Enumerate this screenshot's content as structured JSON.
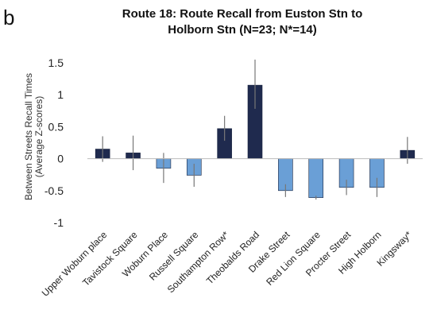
{
  "chart_data": {
    "type": "bar",
    "panel_label": "b",
    "title_lines": [
      "Route 18: Route Recall from Euston Stn to",
      "Holborn Stn (N=23; N*=14)"
    ],
    "ylabel_lines": [
      "Between Streets Recall Times",
      "(Average Z-scores)"
    ],
    "ylim": [
      -1,
      1.5
    ],
    "yticks": [
      -1,
      -0.5,
      0,
      0.5,
      1,
      1.5
    ],
    "ytick_labels": [
      "-1",
      "-0.5",
      "0",
      "0.5",
      "1",
      "1.5"
    ],
    "categories": [
      "Upper Woburn place",
      "Tavistock Square",
      "Woburn Place",
      "Russell Square",
      "Southampton Row*",
      "Theobalds Road",
      "Drake Street",
      "Red Lion Square",
      "Procter Street",
      "High Holborn",
      "Kingsway*"
    ],
    "values": [
      0.15,
      0.09,
      -0.15,
      -0.26,
      0.47,
      1.15,
      -0.5,
      -0.61,
      -0.45,
      -0.45,
      0.13
    ],
    "error_low": [
      -0.05,
      -0.18,
      -0.38,
      -0.44,
      0.28,
      0.78,
      -0.6,
      -0.64,
      -0.57,
      -0.6,
      -0.08
    ],
    "error_high": [
      0.35,
      0.36,
      0.09,
      -0.08,
      0.67,
      1.55,
      -0.4,
      -0.58,
      -0.33,
      -0.3,
      0.34
    ],
    "bar_colors": [
      "#1f2a4e",
      "#1f2a4e",
      "#6a9fd6",
      "#6a9fd6",
      "#1f2a4e",
      "#1f2a4e",
      "#6a9fd6",
      "#6a9fd6",
      "#6a9fd6",
      "#6a9fd6",
      "#1f2a4e"
    ],
    "grid": false,
    "legend": "none"
  }
}
